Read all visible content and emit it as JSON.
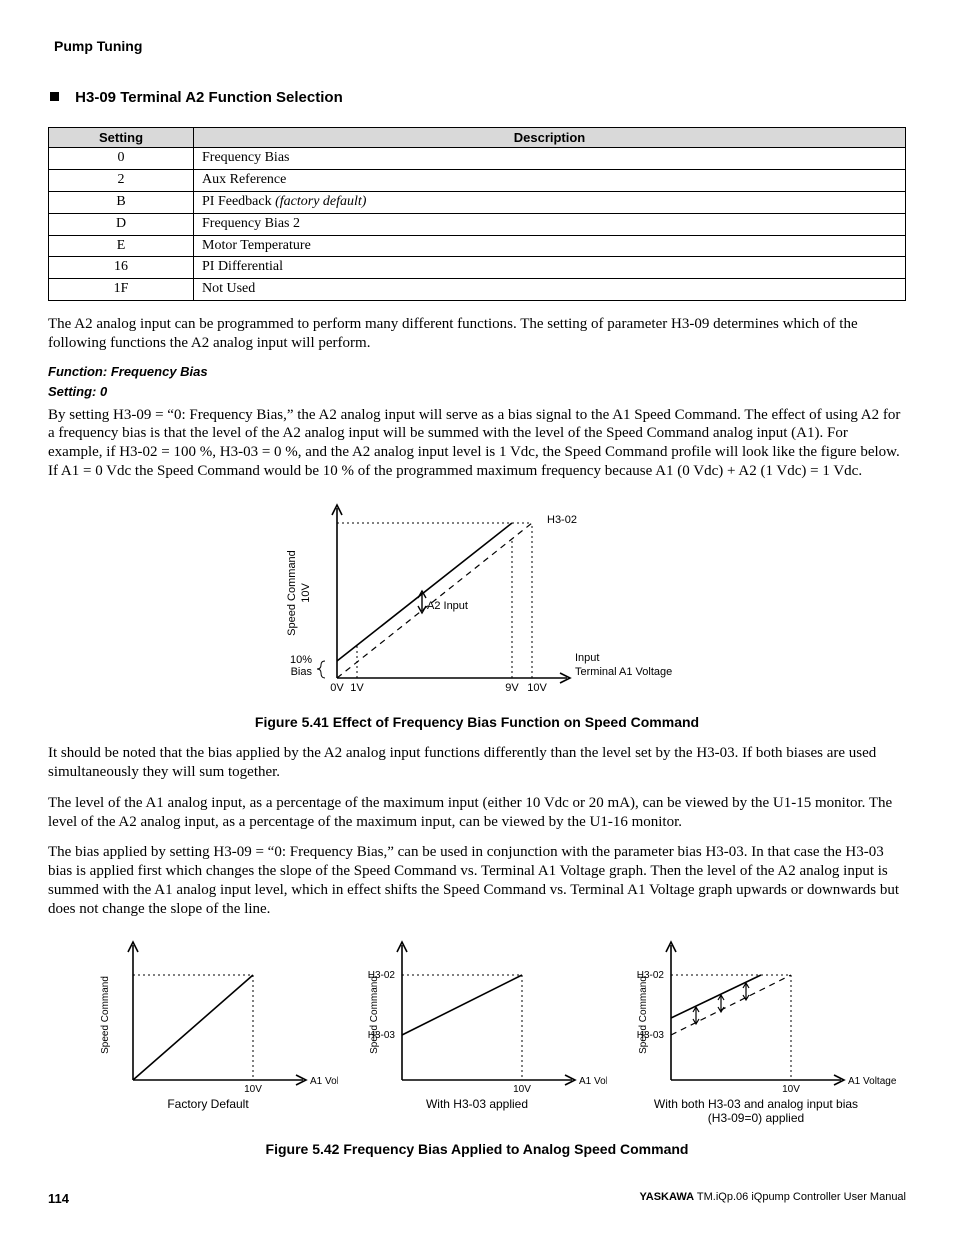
{
  "running_head": "Pump Tuning",
  "section_title": "H3-09 Terminal A2 Function Selection",
  "table": {
    "headers": [
      "Setting",
      "Description"
    ],
    "rows": [
      [
        "0",
        "Frequency Bias"
      ],
      [
        "2",
        "Aux Reference"
      ],
      [
        "B",
        "PI Feedback (factory default)"
      ],
      [
        "D",
        "Frequency Bias 2"
      ],
      [
        "E",
        "Motor Temperature"
      ],
      [
        "16",
        "PI Differential"
      ],
      [
        "1F",
        "Not Used"
      ]
    ],
    "italic_marker": "(factory default)"
  },
  "para_intro": "The A2 analog input can be programmed to perform many different functions. The setting of parameter H3-09 determines which of the following functions the A2 analog input will perform.",
  "func_head1": "Function: Frequency Bias",
  "func_head2": "Setting: 0",
  "para_fb1": "By setting H3-09 = “0: Frequency Bias,” the A2 analog input will serve as a bias signal to the A1 Speed Command. The effect of using A2 for a frequency bias is that the level of the A2 analog input will be summed with the level of the Speed Command analog input (A1). For example, if H3-02 = 100 %, H3-03 = 0 %, and the A2 analog input level is 1 Vdc, the Speed Command profile will look like the figure below. If A1 = 0 Vdc the Speed Command would be 10 % of the programmed maximum frequency because A1 (0 Vdc) + A2 (1 Vdc) = 1 Vdc.",
  "fig41": {
    "caption": "Figure 5.41  Effect of Frequency Bias Function on Speed Command",
    "y_label": "Speed Command",
    "y_top": "10V",
    "y_bias": "10% Bias",
    "x_0v": "0V",
    "x_1v": "1V",
    "x_9v": "9V",
    "x_10v": "10V",
    "h302_label": "H3-02",
    "a2_label": "A2 Input",
    "input_label": "Input",
    "terminal_label": "Terminal A1 Voltage"
  },
  "para_note": "It should be noted that the bias applied by the A2 analog input functions differently than the level set by the H3-03. If both biases are used simultaneously they will sum together.",
  "para_levels": "The level of the A1 analog input, as a percentage of the maximum input (either 10 Vdc or 20 mA), can be viewed by the U1-15 monitor. The level of the A2 analog input, as a percentage of the maximum input, can be viewed by the U1-16 monitor.",
  "para_bias": "The bias applied by setting H3-09 = “0: Frequency Bias,” can be used in conjunction with the parameter bias H3-03. In that case the H3-03 bias is applied first which changes the slope of the Speed Command vs. Terminal A1 Voltage graph. Then the level of the A2 analog input is summed with the A1 analog input level, which in effect shifts the Speed Command vs. Terminal A1 Voltage graph upwards or downwards but does not change the slope of the line.",
  "fig42": {
    "caption": "Figure 5.42   Frequency Bias Applied to Analog Speed Command",
    "y_label": "Speed Command",
    "a1_label": "A1 Voltage",
    "ten_v": "10V",
    "h302": "H3-02",
    "h303": "H3-03",
    "sub1": "Factory Default",
    "sub2": "With H3-03 applied",
    "sub3a": "With both H3-03 and analog input bias",
    "sub3b": "(H3-09=0) applied"
  },
  "footer": {
    "page": "114",
    "brand": "YASKAWA",
    "doc": " TM.iQp.06 iQpump Controller User Manual"
  }
}
